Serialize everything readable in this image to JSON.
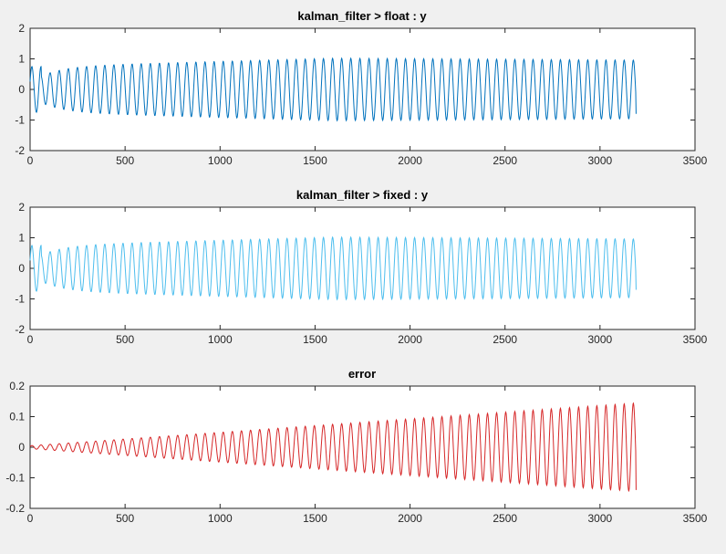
{
  "chart_data": [
    {
      "type": "line",
      "title": "kalman_filter > float : y",
      "xlim": [
        0,
        3500
      ],
      "ylim": [
        -2,
        2
      ],
      "xticks": [
        0,
        500,
        1000,
        1500,
        2000,
        2500,
        3000,
        3500
      ],
      "yticks": [
        2,
        1,
        0,
        -1,
        -2
      ],
      "color": "#0072BD",
      "series": [
        {
          "name": "y",
          "n_points": 3190,
          "cycles": 66.5,
          "amplitude_start": 0.75,
          "amplitude_mid": 1.02,
          "amplitude_end": 0.96,
          "end_value": -0.8
        }
      ]
    },
    {
      "type": "line",
      "title": "kalman_filter > fixed : y",
      "xlim": [
        0,
        3500
      ],
      "ylim": [
        -2,
        2
      ],
      "xticks": [
        0,
        500,
        1000,
        1500,
        2000,
        2500,
        3000,
        3500
      ],
      "yticks": [
        2,
        1,
        0,
        -1,
        -2
      ],
      "color": "#4DBEEE",
      "series": [
        {
          "name": "y",
          "n_points": 3190,
          "cycles": 66.5,
          "amplitude_start": 0.75,
          "amplitude_mid": 1.02,
          "amplitude_end": 0.96,
          "end_value": -0.7
        }
      ]
    },
    {
      "type": "line",
      "title": "error",
      "xlim": [
        0,
        3500
      ],
      "ylim": [
        -0.2,
        0.2
      ],
      "xticks": [
        0,
        500,
        1000,
        1500,
        2000,
        2500,
        3000,
        3500
      ],
      "yticks": [
        0.2,
        0.1,
        0,
        -0.1,
        -0.2
      ],
      "color": "#D62728",
      "series": [
        {
          "name": "error",
          "n_points": 3190,
          "cycles": 66.5,
          "amplitude_start": 0.005,
          "amplitude_end": 0.145,
          "end_value": -0.14
        }
      ]
    }
  ]
}
